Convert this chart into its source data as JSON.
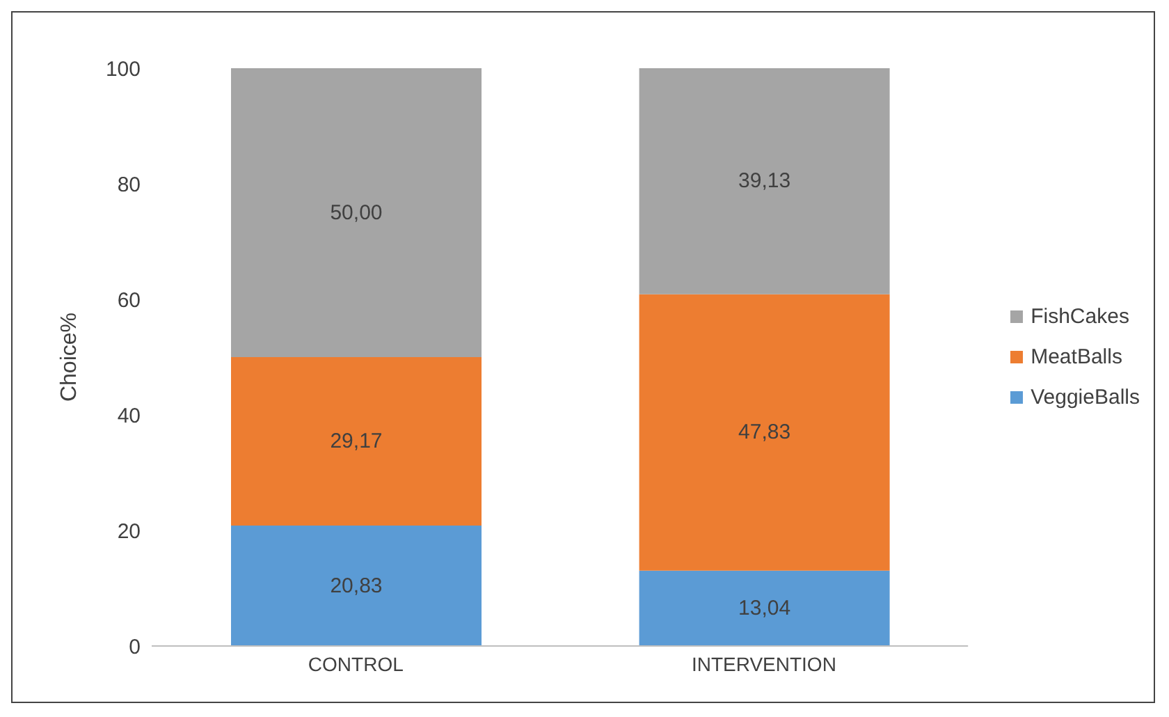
{
  "chart_data": {
    "type": "bar",
    "stacked": true,
    "ylabel": "Choice%",
    "categories": [
      "CONTROL",
      "INTERVENTION"
    ],
    "series": [
      {
        "name": "VeggieBalls",
        "color": "#5b9bd5",
        "values": [
          20.83,
          13.04
        ],
        "value_labels": [
          "20,83",
          "13,04"
        ]
      },
      {
        "name": "MeatBalls",
        "color": "#ed7d31",
        "values": [
          29.17,
          47.83
        ],
        "value_labels": [
          "29,17",
          "47,83"
        ]
      },
      {
        "name": "FishCakes",
        "color": "#a5a5a5",
        "values": [
          50.0,
          39.13
        ],
        "value_labels": [
          "50,00",
          "39,13"
        ]
      }
    ],
    "ylim": [
      0,
      100
    ],
    "yticks": [
      0,
      20,
      40,
      60,
      80,
      100
    ],
    "legend": "right",
    "grid": false
  }
}
